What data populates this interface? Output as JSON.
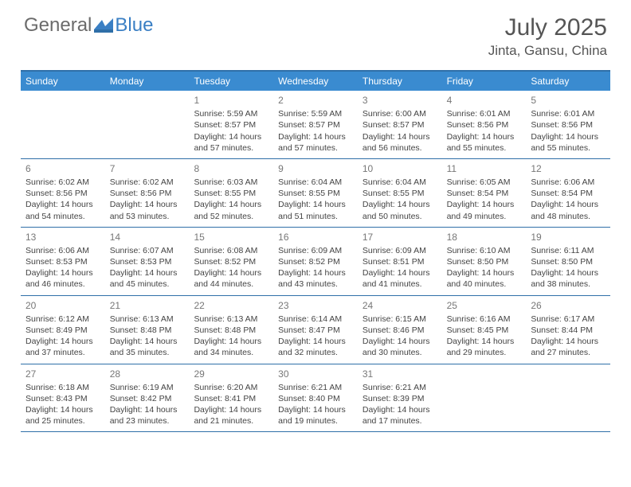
{
  "logo": {
    "general": "General",
    "blue": "Blue"
  },
  "title": {
    "monthYear": "July 2025",
    "location": "Jinta, Gansu, China"
  },
  "colors": {
    "headerBar": "#3a8bd0",
    "rule": "#2f6fa8",
    "logoBlue": "#3a7fc4",
    "logoGray": "#6b6b6b",
    "text": "#444444",
    "dayNum": "#777777",
    "bg": "#ffffff"
  },
  "daysOfWeek": [
    "Sunday",
    "Monday",
    "Tuesday",
    "Wednesday",
    "Thursday",
    "Friday",
    "Saturday"
  ],
  "weeks": [
    [
      null,
      null,
      {
        "n": "1",
        "sr": "5:59 AM",
        "ss": "8:57 PM",
        "dl": "14 hours and 57 minutes."
      },
      {
        "n": "2",
        "sr": "5:59 AM",
        "ss": "8:57 PM",
        "dl": "14 hours and 57 minutes."
      },
      {
        "n": "3",
        "sr": "6:00 AM",
        "ss": "8:57 PM",
        "dl": "14 hours and 56 minutes."
      },
      {
        "n": "4",
        "sr": "6:01 AM",
        "ss": "8:56 PM",
        "dl": "14 hours and 55 minutes."
      },
      {
        "n": "5",
        "sr": "6:01 AM",
        "ss": "8:56 PM",
        "dl": "14 hours and 55 minutes."
      }
    ],
    [
      {
        "n": "6",
        "sr": "6:02 AM",
        "ss": "8:56 PM",
        "dl": "14 hours and 54 minutes."
      },
      {
        "n": "7",
        "sr": "6:02 AM",
        "ss": "8:56 PM",
        "dl": "14 hours and 53 minutes."
      },
      {
        "n": "8",
        "sr": "6:03 AM",
        "ss": "8:55 PM",
        "dl": "14 hours and 52 minutes."
      },
      {
        "n": "9",
        "sr": "6:04 AM",
        "ss": "8:55 PM",
        "dl": "14 hours and 51 minutes."
      },
      {
        "n": "10",
        "sr": "6:04 AM",
        "ss": "8:55 PM",
        "dl": "14 hours and 50 minutes."
      },
      {
        "n": "11",
        "sr": "6:05 AM",
        "ss": "8:54 PM",
        "dl": "14 hours and 49 minutes."
      },
      {
        "n": "12",
        "sr": "6:06 AM",
        "ss": "8:54 PM",
        "dl": "14 hours and 48 minutes."
      }
    ],
    [
      {
        "n": "13",
        "sr": "6:06 AM",
        "ss": "8:53 PM",
        "dl": "14 hours and 46 minutes."
      },
      {
        "n": "14",
        "sr": "6:07 AM",
        "ss": "8:53 PM",
        "dl": "14 hours and 45 minutes."
      },
      {
        "n": "15",
        "sr": "6:08 AM",
        "ss": "8:52 PM",
        "dl": "14 hours and 44 minutes."
      },
      {
        "n": "16",
        "sr": "6:09 AM",
        "ss": "8:52 PM",
        "dl": "14 hours and 43 minutes."
      },
      {
        "n": "17",
        "sr": "6:09 AM",
        "ss": "8:51 PM",
        "dl": "14 hours and 41 minutes."
      },
      {
        "n": "18",
        "sr": "6:10 AM",
        "ss": "8:50 PM",
        "dl": "14 hours and 40 minutes."
      },
      {
        "n": "19",
        "sr": "6:11 AM",
        "ss": "8:50 PM",
        "dl": "14 hours and 38 minutes."
      }
    ],
    [
      {
        "n": "20",
        "sr": "6:12 AM",
        "ss": "8:49 PM",
        "dl": "14 hours and 37 minutes."
      },
      {
        "n": "21",
        "sr": "6:13 AM",
        "ss": "8:48 PM",
        "dl": "14 hours and 35 minutes."
      },
      {
        "n": "22",
        "sr": "6:13 AM",
        "ss": "8:48 PM",
        "dl": "14 hours and 34 minutes."
      },
      {
        "n": "23",
        "sr": "6:14 AM",
        "ss": "8:47 PM",
        "dl": "14 hours and 32 minutes."
      },
      {
        "n": "24",
        "sr": "6:15 AM",
        "ss": "8:46 PM",
        "dl": "14 hours and 30 minutes."
      },
      {
        "n": "25",
        "sr": "6:16 AM",
        "ss": "8:45 PM",
        "dl": "14 hours and 29 minutes."
      },
      {
        "n": "26",
        "sr": "6:17 AM",
        "ss": "8:44 PM",
        "dl": "14 hours and 27 minutes."
      }
    ],
    [
      {
        "n": "27",
        "sr": "6:18 AM",
        "ss": "8:43 PM",
        "dl": "14 hours and 25 minutes."
      },
      {
        "n": "28",
        "sr": "6:19 AM",
        "ss": "8:42 PM",
        "dl": "14 hours and 23 minutes."
      },
      {
        "n": "29",
        "sr": "6:20 AM",
        "ss": "8:41 PM",
        "dl": "14 hours and 21 minutes."
      },
      {
        "n": "30",
        "sr": "6:21 AM",
        "ss": "8:40 PM",
        "dl": "14 hours and 19 minutes."
      },
      {
        "n": "31",
        "sr": "6:21 AM",
        "ss": "8:39 PM",
        "dl": "14 hours and 17 minutes."
      },
      null,
      null
    ]
  ],
  "labels": {
    "sunrise": "Sunrise: ",
    "sunset": "Sunset: ",
    "daylight": "Daylight: "
  }
}
